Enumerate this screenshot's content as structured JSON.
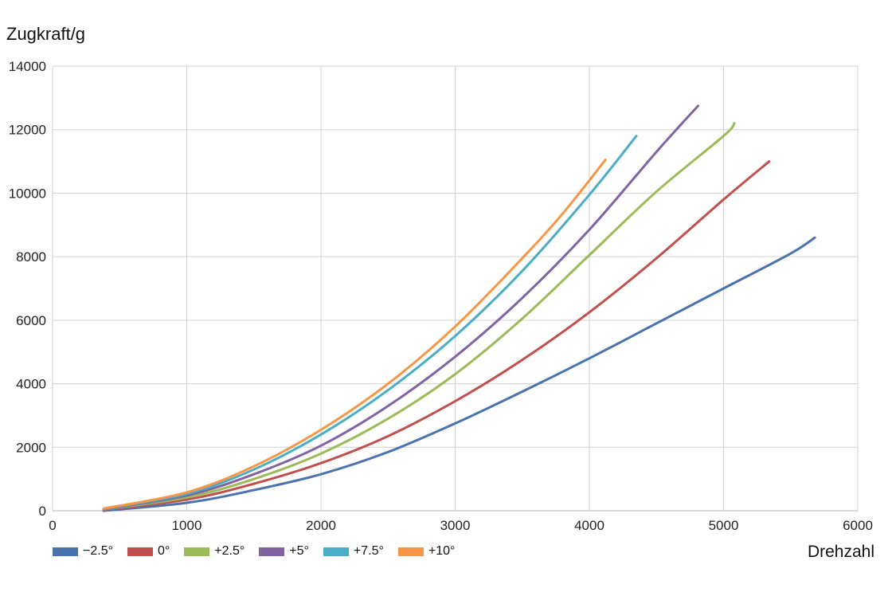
{
  "chart_data": {
    "type": "line",
    "xlabel": "Drehzahl",
    "ylabel": "Zugkraft/g",
    "xlim": [
      0,
      6000
    ],
    "ylim": [
      0,
      14000
    ],
    "xticks": [
      "0",
      "1000",
      "2000",
      "3000",
      "4000",
      "5000",
      "6000"
    ],
    "yticks": [
      "0",
      "2000",
      "4000",
      "6000",
      "8000",
      "10000",
      "12000",
      "14000"
    ],
    "grid": true,
    "legend": "bottom-left",
    "series": [
      {
        "name": "−2.5°",
        "color": "#4a72ac",
        "x": [
          380,
          1000,
          1500,
          2000,
          2500,
          3000,
          3500,
          4000,
          4500,
          5000,
          5500,
          5680
        ],
        "y": [
          0,
          250,
          650,
          1150,
          1850,
          2750,
          3750,
          4800,
          5900,
          7000,
          8100,
          8600
        ]
      },
      {
        "name": "0°",
        "color": "#c0504d",
        "x": [
          380,
          1000,
          1500,
          2000,
          2500,
          3000,
          3500,
          4000,
          4500,
          5000,
          5340
        ],
        "y": [
          30,
          350,
          850,
          1500,
          2350,
          3450,
          4750,
          6250,
          7950,
          9800,
          11000
        ]
      },
      {
        "name": "+2.5°",
        "color": "#9bbb59",
        "x": [
          380,
          1000,
          1500,
          2000,
          2500,
          3000,
          3500,
          4000,
          4500,
          5000,
          5080
        ],
        "y": [
          40,
          420,
          1000,
          1800,
          2900,
          4300,
          6050,
          8050,
          10050,
          11800,
          12200
        ]
      },
      {
        "name": "+5°",
        "color": "#8064a2",
        "x": [
          380,
          1000,
          1500,
          2000,
          2500,
          3000,
          3500,
          4000,
          4500,
          4810
        ],
        "y": [
          50,
          480,
          1150,
          2050,
          3300,
          4850,
          6700,
          8850,
          11300,
          12750
        ]
      },
      {
        "name": "+7.5°",
        "color": "#4bacc6",
        "x": [
          380,
          1000,
          1500,
          2000,
          2500,
          3000,
          3500,
          4000,
          4350
        ],
        "y": [
          60,
          530,
          1300,
          2400,
          3800,
          5500,
          7550,
          9950,
          11800
        ]
      },
      {
        "name": "+10°",
        "color": "#f79646",
        "x": [
          380,
          1000,
          1500,
          2000,
          2500,
          3000,
          3500,
          3800,
          4120
        ],
        "y": [
          70,
          580,
          1400,
          2550,
          4000,
          5800,
          7950,
          9350,
          11050
        ]
      }
    ]
  }
}
